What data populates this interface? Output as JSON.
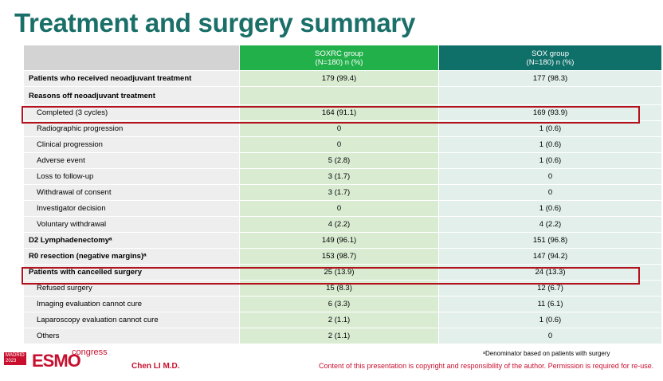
{
  "header": {
    "title": "Treatment and surgery summary"
  },
  "table": {
    "columns": [
      [
        "SOXRC group",
        "(N=180)  n (%)"
      ],
      [
        "SOX group",
        "(N=180)  n (%)"
      ]
    ],
    "rows": [
      [
        "Patients who received neoadjuvant treatment",
        "179 (99.4)",
        "177 (98.3)"
      ],
      [
        "Reasons off neoadjuvant treatment",
        "",
        ""
      ],
      [
        "Completed (3 cycles)",
        "164 (91.1)",
        "169 (93.9)"
      ],
      [
        "Radiographic progression",
        "0",
        "1 (0.6)"
      ],
      [
        "Clinical progression",
        "0",
        "1 (0.6)"
      ],
      [
        "Adverse event",
        "5 (2.8)",
        "1 (0.6)"
      ],
      [
        "Loss to follow-up",
        "3 (1.7)",
        "0"
      ],
      [
        "Withdrawal of consent",
        "3 (1.7)",
        "0"
      ],
      [
        "Investigator decision",
        "0",
        "1 (0.6)"
      ],
      [
        "Voluntary withdrawal",
        "4 (2.2)",
        "4 (2.2)"
      ],
      [
        "D2 Lymphadenectomyᵃ",
        "149 (96.1)",
        "151 (96.8)"
      ],
      [
        "R0 resection (negative margins)ᵃ",
        "153 (98.7)",
        "147 (94.2)"
      ],
      [
        "Patients with cancelled surgery",
        "25 (13.9)",
        "24 (13.3)"
      ],
      [
        "Refused surgery",
        "15 (8.3)",
        "12 (6.7)"
      ],
      [
        "Imaging evaluation cannot cure",
        "6 (3.3)",
        "11 (6.1)"
      ],
      [
        "Laparoscopy evaluation cannot cure",
        "2 (1.1)",
        "1 (0.6)"
      ],
      [
        "Others",
        "2 (1.1)",
        "0"
      ]
    ]
  },
  "footer": {
    "logo_city": "MADRID",
    "logo_year": "2023",
    "logo_name": "ESMO",
    "logo_word": "congress",
    "author": "Chen LI M.D.",
    "footnote": "ᵃDenominator based on patients with surgery",
    "copyright": "Content of this presentation is copyright and responsibility of the author. Permission is required for re-use."
  }
}
